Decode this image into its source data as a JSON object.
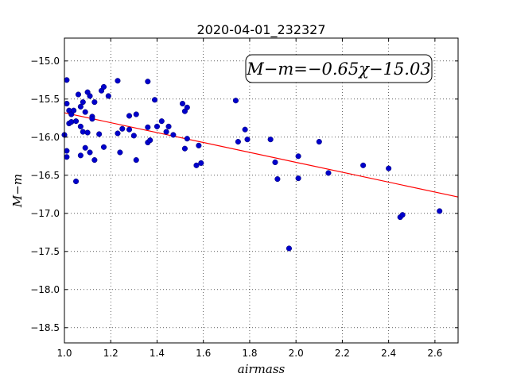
{
  "chart_data": {
    "type": "scatter",
    "title": "2020-04-01_232327",
    "xlabel": "airmass",
    "ylabel": "M−m",
    "xlim": [
      1.0,
      2.7
    ],
    "ylim": [
      -18.7,
      -14.7
    ],
    "y_inverted": true,
    "grid": true,
    "x_ticks": [
      "1.0",
      "1.2",
      "1.4",
      "1.6",
      "1.8",
      "2.0",
      "2.2",
      "2.4",
      "2.6"
    ],
    "y_ticks": [
      "−15.0",
      "−15.5",
      "−16.0",
      "−16.5",
      "−17.0",
      "−17.5",
      "−18.0",
      "−18.5"
    ],
    "annotation": "M−m=−0.65χ−15.03",
    "fit_line": {
      "slope": -0.65,
      "intercept": -15.03,
      "color": "#ff0000"
    },
    "point_color": "#0000cc",
    "points": [
      [
        1.0,
        -15.97
      ],
      [
        1.01,
        -16.26
      ],
      [
        1.01,
        -16.18
      ],
      [
        1.01,
        -15.25
      ],
      [
        1.01,
        -15.56
      ],
      [
        1.02,
        -15.65
      ],
      [
        1.02,
        -15.82
      ],
      [
        1.03,
        -15.7
      ],
      [
        1.03,
        -15.8
      ],
      [
        1.04,
        -15.65
      ],
      [
        1.05,
        -15.79
      ],
      [
        1.05,
        -16.58
      ],
      [
        1.06,
        -15.44
      ],
      [
        1.07,
        -15.6
      ],
      [
        1.07,
        -15.86
      ],
      [
        1.07,
        -16.24
      ],
      [
        1.08,
        -15.54
      ],
      [
        1.08,
        -15.93
      ],
      [
        1.09,
        -16.14
      ],
      [
        1.09,
        -15.67
      ],
      [
        1.1,
        -15.94
      ],
      [
        1.1,
        -15.41
      ],
      [
        1.11,
        -15.46
      ],
      [
        1.11,
        -16.2
      ],
      [
        1.12,
        -15.73
      ],
      [
        1.12,
        -15.76
      ],
      [
        1.13,
        -15.54
      ],
      [
        1.13,
        -16.3
      ],
      [
        1.15,
        -15.96
      ],
      [
        1.16,
        -15.39
      ],
      [
        1.17,
        -15.34
      ],
      [
        1.17,
        -16.13
      ],
      [
        1.19,
        -15.46
      ],
      [
        1.23,
        -15.95
      ],
      [
        1.23,
        -15.26
      ],
      [
        1.24,
        -16.2
      ],
      [
        1.25,
        -15.89
      ],
      [
        1.28,
        -15.72
      ],
      [
        1.28,
        -15.9
      ],
      [
        1.3,
        -15.98
      ],
      [
        1.31,
        -16.3
      ],
      [
        1.31,
        -15.7
      ],
      [
        1.36,
        -15.27
      ],
      [
        1.36,
        -16.07
      ],
      [
        1.36,
        -15.87
      ],
      [
        1.37,
        -16.04
      ],
      [
        1.39,
        -15.51
      ],
      [
        1.4,
        -15.86
      ],
      [
        1.42,
        -15.79
      ],
      [
        1.44,
        -15.93
      ],
      [
        1.45,
        -15.86
      ],
      [
        1.47,
        -15.97
      ],
      [
        1.51,
        -15.56
      ],
      [
        1.52,
        -16.15
      ],
      [
        1.52,
        -15.66
      ],
      [
        1.53,
        -15.61
      ],
      [
        1.53,
        -16.02
      ],
      [
        1.57,
        -16.37
      ],
      [
        1.58,
        -16.11
      ],
      [
        1.59,
        -16.34
      ],
      [
        1.74,
        -15.52
      ],
      [
        1.75,
        -16.06
      ],
      [
        1.78,
        -15.9
      ],
      [
        1.79,
        -16.03
      ],
      [
        1.89,
        -16.03
      ],
      [
        1.91,
        -16.33
      ],
      [
        1.92,
        -16.55
      ],
      [
        1.97,
        -17.46
      ],
      [
        2.01,
        -16.25
      ],
      [
        2.01,
        -16.54
      ],
      [
        2.1,
        -16.06
      ],
      [
        2.14,
        -16.47
      ],
      [
        2.29,
        -16.37
      ],
      [
        2.4,
        -16.41
      ],
      [
        2.45,
        -17.05
      ],
      [
        2.46,
        -17.02
      ],
      [
        2.62,
        -16.97
      ]
    ]
  }
}
